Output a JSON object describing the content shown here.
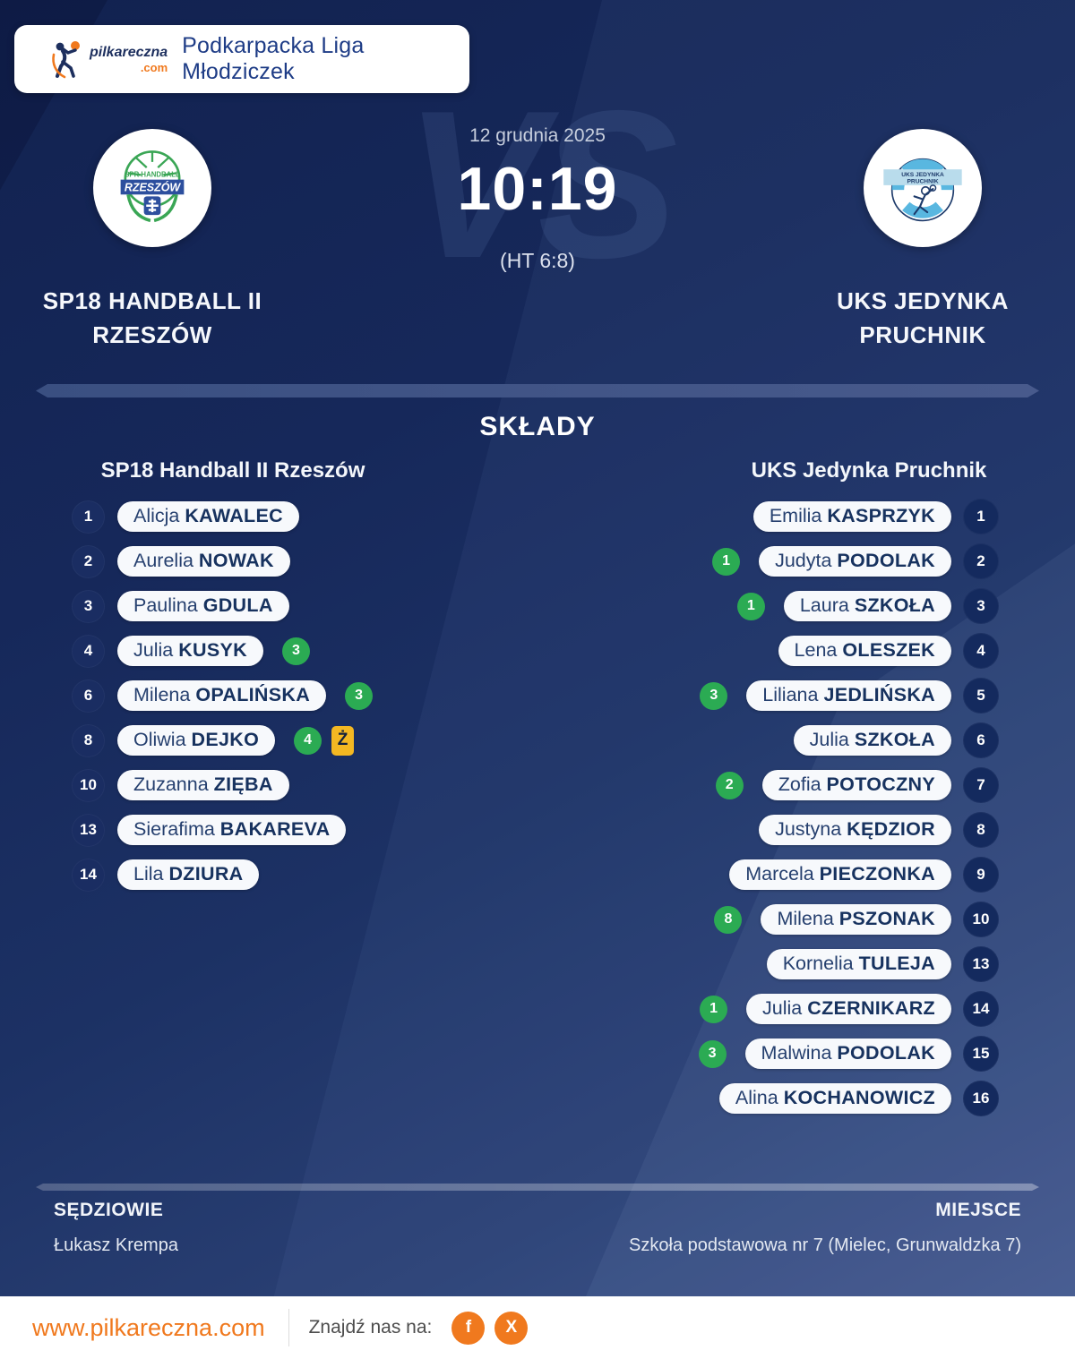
{
  "header": {
    "brand": "pilkareczna",
    "brand_tld": ".com",
    "league": "Podkarpacka Liga Młodziczek"
  },
  "match": {
    "date": "12 grudnia 2025",
    "score": "10:19",
    "halftime": "(HT 6:8)",
    "vs_watermark": "VS"
  },
  "teams": {
    "home": {
      "name": "SP18 HANDBALL II RZESZÓW",
      "crest_text": "RZESZÓW",
      "crest_top_text": "SPR HANDBALL"
    },
    "away": {
      "name": "UKS JEDYNKA PRUCHNIK",
      "crest_text_line1": "UKS JEDYNKA",
      "crest_text_line2": "PRUCHNIK"
    }
  },
  "lineups": {
    "title": "SKŁADY",
    "yellow_card_glyph": "Ż",
    "home": {
      "header": "SP18 Handball II Rzeszów",
      "players": [
        {
          "num": "1",
          "first": "Alicja",
          "last": "KAWALEC"
        },
        {
          "num": "2",
          "first": "Aurelia",
          "last": "NOWAK"
        },
        {
          "num": "3",
          "first": "Paulina",
          "last": "GDULA"
        },
        {
          "num": "4",
          "first": "Julia",
          "last": "KUSYK",
          "goals": "3"
        },
        {
          "num": "6",
          "first": "Milena",
          "last": "OPALIŃSKA",
          "goals": "3"
        },
        {
          "num": "8",
          "first": "Oliwia",
          "last": "DEJKO",
          "goals": "4",
          "yellow": true
        },
        {
          "num": "10",
          "first": "Zuzanna",
          "last": "ZIĘBA"
        },
        {
          "num": "13",
          "first": "Sierafima",
          "last": "BAKAREVA"
        },
        {
          "num": "14",
          "first": "Lila",
          "last": "DZIURA"
        }
      ]
    },
    "away": {
      "header": "UKS Jedynka Pruchnik",
      "players": [
        {
          "num": "1",
          "first": "Emilia",
          "last": "KASPRZYK"
        },
        {
          "num": "2",
          "first": "Judyta",
          "last": "PODOLAK",
          "goals": "1"
        },
        {
          "num": "3",
          "first": "Laura",
          "last": "SZKOŁA",
          "goals": "1"
        },
        {
          "num": "4",
          "first": "Lena",
          "last": "OLESZEK"
        },
        {
          "num": "5",
          "first": "Liliana",
          "last": "JEDLIŃSKA",
          "goals": "3"
        },
        {
          "num": "6",
          "first": "Julia",
          "last": "SZKOŁA"
        },
        {
          "num": "7",
          "first": "Zofia",
          "last": "POTOCZNY",
          "goals": "2"
        },
        {
          "num": "8",
          "first": "Justyna",
          "last": "KĘDZIOR"
        },
        {
          "num": "9",
          "first": "Marcela",
          "last": "PIECZONKA"
        },
        {
          "num": "10",
          "first": "Milena",
          "last": "PSZONAK",
          "goals": "8"
        },
        {
          "num": "13",
          "first": "Kornelia",
          "last": "TULEJA"
        },
        {
          "num": "14",
          "first": "Julia",
          "last": "CZERNIKARZ",
          "goals": "1"
        },
        {
          "num": "15",
          "first": "Malwina",
          "last": "PODOLAK",
          "goals": "3"
        },
        {
          "num": "16",
          "first": "Alina",
          "last": "KOCHANOWICZ"
        }
      ]
    }
  },
  "officials": {
    "referees_label": "SĘDZIOWIE",
    "referees": "Łukasz Krempa",
    "venue_label": "MIEJSCE",
    "venue": "Szkoła podstawowa nr 7 (Mielec, Grunwaldzka 7)"
  },
  "footer": {
    "site": "www.pilkareczna.com",
    "find_us": "Znajdź nas na:",
    "social": [
      {
        "name": "facebook",
        "glyph": "f"
      },
      {
        "name": "x",
        "glyph": "X"
      }
    ]
  },
  "colors": {
    "accent_orange": "#f0791e",
    "goal_green": "#2bab53",
    "card_yellow": "#f4b822",
    "navy_background": "#16285a",
    "pill_text_navy": "#17325f"
  }
}
